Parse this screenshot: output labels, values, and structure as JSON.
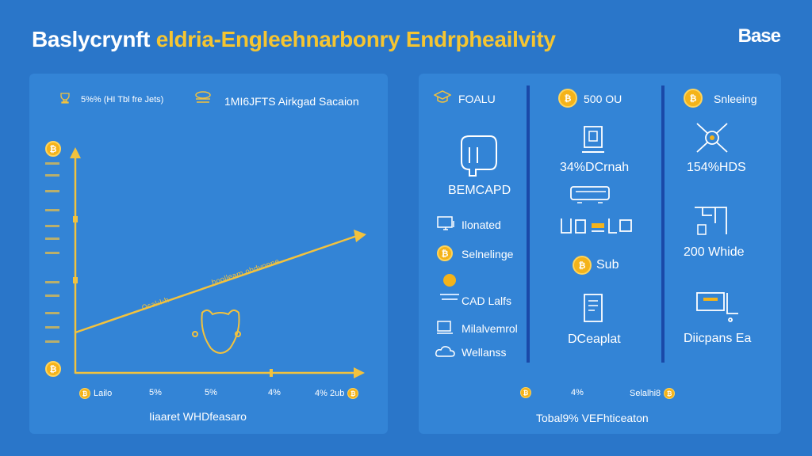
{
  "title": {
    "part1": "Baslycrynft",
    "part2": "eldria-Englеehnarbonry Endrpheailvity"
  },
  "brand": "Base",
  "left_panel": {
    "legend_1": "5%% (HI Tbl fre Jets)",
    "legend_2": "1MI6JFTS Airkgad Sacaion",
    "y_ticks": [
      "",
      "",
      "",
      "",
      "",
      "",
      "",
      "",
      "",
      "",
      ""
    ],
    "line_labels": {
      "segment_1": "Ocal:!:h",
      "segment_2": "hoolleam ohdvonne"
    },
    "x_ticks": [
      "Lailo",
      "5%",
      "5%",
      "4%",
      "4% 2ub"
    ],
    "x_axis_title": "Iiaaret WHDfeasaro",
    "color_axis": "#f2c23e"
  },
  "right_panel": {
    "col1": {
      "header": "FOALU",
      "chip_label": "BEMCAPD",
      "items": [
        "Ilonated",
        "Selnelinge",
        "CAD Lalfs",
        "Milalvemrol",
        "Wellanss"
      ]
    },
    "col2": {
      "header": "500 OU",
      "value": "34%DCrnah",
      "badge": "Sub",
      "footer": "DCeaplat"
    },
    "col3": {
      "header": "Snleeing",
      "value": "154%HDS",
      "amount": "200 Whide",
      "footer": "Diicpans Ea"
    },
    "x_ticks": [
      "",
      "4%",
      "Selalhi8"
    ],
    "x_axis_title": "Tobal9% VEFhticeaton",
    "color_axis": "#f2c23e"
  }
}
